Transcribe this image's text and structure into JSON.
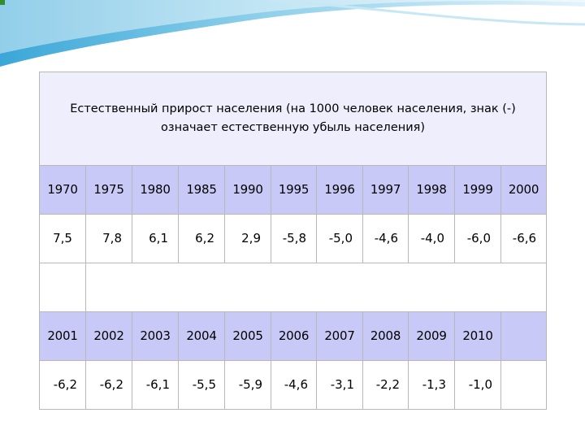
{
  "title": "Естественный прирост населения (на 1000 человек населения, знак (-) означает естественную убыль населения)",
  "table1": {
    "years": [
      "1970",
      "1975",
      "1980",
      "1985",
      "1990",
      "1995",
      "1996",
      "1997",
      "1998",
      "1999",
      "2000"
    ],
    "values": [
      "7,5",
      "7,8",
      "6,1",
      "6,2",
      "2,9",
      "-5,8",
      "-5,0",
      "-4,6",
      "-4,0",
      "-6,0",
      "-6,6"
    ]
  },
  "table2": {
    "years": [
      "2001",
      "2002",
      "2003",
      "2004",
      "2005",
      "2006",
      "2007",
      "2008",
      "2009",
      "2010"
    ],
    "values": [
      "-6,2",
      "-6,2",
      "-6,1",
      "-5,5",
      "-5,9",
      "-4,6",
      "-3,1",
      "-2,2",
      "-1,3",
      "-1,0"
    ]
  },
  "colors": {
    "header_bg": "#c9c9f7",
    "title_bg": "#eeeefc",
    "border": "#b8b8b8",
    "accent_wave": "#8fd0ea"
  }
}
